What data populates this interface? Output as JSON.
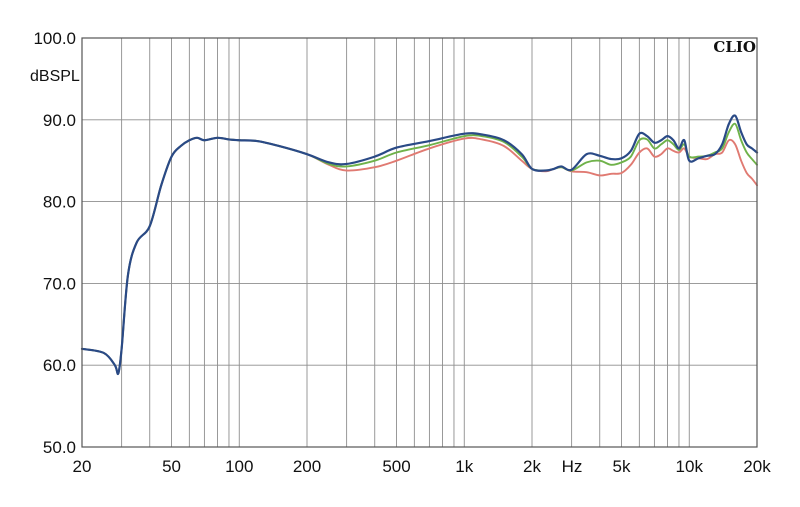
{
  "chart_data": {
    "type": "line",
    "title": "",
    "brand": "CLIO",
    "ylabel": "dBSPL",
    "xlabel": "",
    "x_unit": "Hz",
    "x_scale": "log",
    "xlim": [
      20,
      20000
    ],
    "ylim": [
      50,
      100
    ],
    "grid": true,
    "x_tick_values": [
      20,
      50,
      100,
      200,
      500,
      1000,
      2000,
      5000,
      10000,
      20000
    ],
    "x_tick_labels": [
      "20",
      "50",
      "100",
      "200",
      "500",
      "1k",
      "2k",
      "5k",
      "10k",
      "20k"
    ],
    "y_tick_values": [
      50,
      60,
      70,
      80,
      90,
      100
    ],
    "y_tick_labels": [
      "50.0",
      "60.0",
      "70.0",
      "80.0",
      "90.0",
      "100.0"
    ],
    "series": [
      {
        "color": "#e07a72",
        "x": [
          20,
          25,
          28,
          29,
          30,
          32,
          35,
          40,
          45,
          50,
          55,
          60,
          65,
          70,
          80,
          90,
          100,
          120,
          150,
          200,
          250,
          300,
          400,
          500,
          700,
          1000,
          1200,
          1500,
          1800,
          2000,
          2300,
          2500,
          2700,
          3000,
          3500,
          4000,
          4500,
          5000,
          5500,
          6000,
          6500,
          7000,
          7500,
          8000,
          8500,
          9000,
          9500,
          10000,
          11000,
          12000,
          13000,
          14000,
          15000,
          16000,
          17000,
          18000,
          19000,
          20000
        ],
        "y": [
          62.0,
          61.5,
          60.0,
          59.0,
          62.0,
          71.0,
          75.0,
          77.0,
          82.0,
          85.5,
          86.8,
          87.5,
          87.8,
          87.5,
          87.8,
          87.6,
          87.5,
          87.4,
          86.8,
          85.8,
          84.5,
          83.8,
          84.2,
          85.0,
          86.5,
          87.7,
          87.6,
          86.8,
          85.0,
          84.0,
          83.7,
          84.0,
          84.2,
          83.7,
          83.6,
          83.2,
          83.4,
          83.5,
          84.5,
          86.0,
          86.5,
          85.5,
          85.8,
          86.5,
          86.2,
          86.0,
          86.5,
          85.5,
          85.3,
          85.2,
          85.8,
          86.0,
          87.5,
          87.0,
          85.0,
          83.5,
          82.8,
          82.0
        ]
      },
      {
        "color": "#6fb24a",
        "x": [
          20,
          25,
          28,
          29,
          30,
          32,
          35,
          40,
          45,
          50,
          55,
          60,
          65,
          70,
          80,
          90,
          100,
          120,
          150,
          200,
          250,
          300,
          400,
          500,
          700,
          1000,
          1200,
          1500,
          1800,
          2000,
          2300,
          2500,
          2700,
          3000,
          3500,
          4000,
          4500,
          5000,
          5500,
          6000,
          6500,
          7000,
          7500,
          8000,
          8500,
          9000,
          9500,
          10000,
          11000,
          12000,
          13000,
          14000,
          15000,
          16000,
          17000,
          18000,
          19000,
          20000
        ],
        "y": [
          62.0,
          61.5,
          60.0,
          59.0,
          62.0,
          71.0,
          75.0,
          77.0,
          82.0,
          85.5,
          86.8,
          87.5,
          87.8,
          87.5,
          87.8,
          87.6,
          87.5,
          87.4,
          86.8,
          85.8,
          84.6,
          84.3,
          85.0,
          86.0,
          86.9,
          88.0,
          88.0,
          87.3,
          85.5,
          84.0,
          83.8,
          84.0,
          84.2,
          83.8,
          84.8,
          85.0,
          84.5,
          84.8,
          85.5,
          87.5,
          87.6,
          86.5,
          87.0,
          87.5,
          87.0,
          86.3,
          87.0,
          85.5,
          85.5,
          85.6,
          86.0,
          86.5,
          88.5,
          89.5,
          87.5,
          86.0,
          85.2,
          84.5
        ]
      },
      {
        "color": "#2a4a86",
        "x": [
          20,
          25,
          28,
          29,
          30,
          32,
          35,
          40,
          45,
          50,
          55,
          60,
          65,
          70,
          80,
          90,
          100,
          120,
          150,
          200,
          250,
          300,
          400,
          500,
          700,
          1000,
          1200,
          1500,
          1800,
          2000,
          2300,
          2500,
          2700,
          3000,
          3500,
          4000,
          4500,
          5000,
          5500,
          6000,
          6500,
          7000,
          7500,
          8000,
          8500,
          9000,
          9500,
          10000,
          11000,
          12000,
          13000,
          14000,
          15000,
          16000,
          17000,
          18000,
          19000,
          20000
        ],
        "y": [
          62.0,
          61.5,
          60.0,
          59.0,
          62.0,
          71.0,
          75.0,
          77.0,
          82.0,
          85.5,
          86.8,
          87.5,
          87.8,
          87.5,
          87.8,
          87.6,
          87.5,
          87.4,
          86.8,
          85.8,
          84.8,
          84.6,
          85.5,
          86.6,
          87.4,
          88.3,
          88.2,
          87.5,
          85.8,
          84.0,
          83.8,
          84.0,
          84.3,
          83.9,
          85.8,
          85.6,
          85.2,
          85.3,
          86.2,
          88.3,
          88.0,
          87.2,
          87.5,
          88.0,
          87.5,
          86.5,
          87.5,
          85.0,
          85.3,
          85.6,
          85.8,
          87.0,
          89.5,
          90.5,
          88.5,
          87.0,
          86.5,
          86.0
        ]
      }
    ]
  }
}
